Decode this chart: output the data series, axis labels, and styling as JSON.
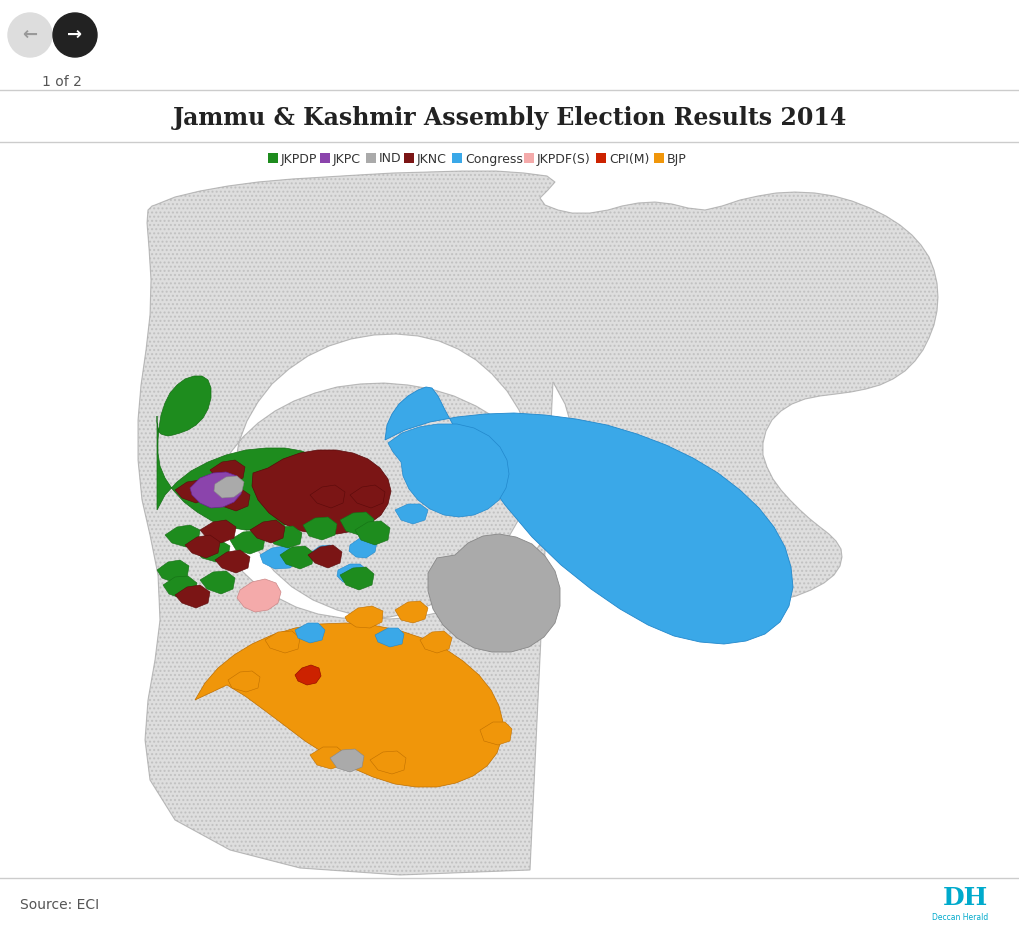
{
  "title": "Jammu & Kashmir Assembly Election Results 2014",
  "title_fontsize": 17,
  "title_color": "#222222",
  "source_text": "Source: ECI",
  "page_text": "1 of 2",
  "background_color": "#ffffff",
  "legend_items": [
    {
      "label": "JKPDP",
      "color": "#1e8c1e"
    },
    {
      "label": "JKPC",
      "color": "#8b44ac"
    },
    {
      "label": "IND",
      "color": "#aaaaaa"
    },
    {
      "label": "JKNC",
      "color": "#7b1515"
    },
    {
      "label": "Congress",
      "color": "#3aa8e8"
    },
    {
      "label": "JKPDF(S)",
      "color": "#f4aaaa"
    },
    {
      "label": "CPI(M)",
      "color": "#cc2200"
    },
    {
      "label": "BJP",
      "color": "#f0960a"
    }
  ],
  "map_bg_color": "#c8c8c8",
  "map_hatch_color": "#b0b0b0",
  "dh_color": "#00aacc",
  "border_color": "#cccccc",
  "nav_back_color": "#dddddd",
  "nav_fwd_color": "#222222"
}
